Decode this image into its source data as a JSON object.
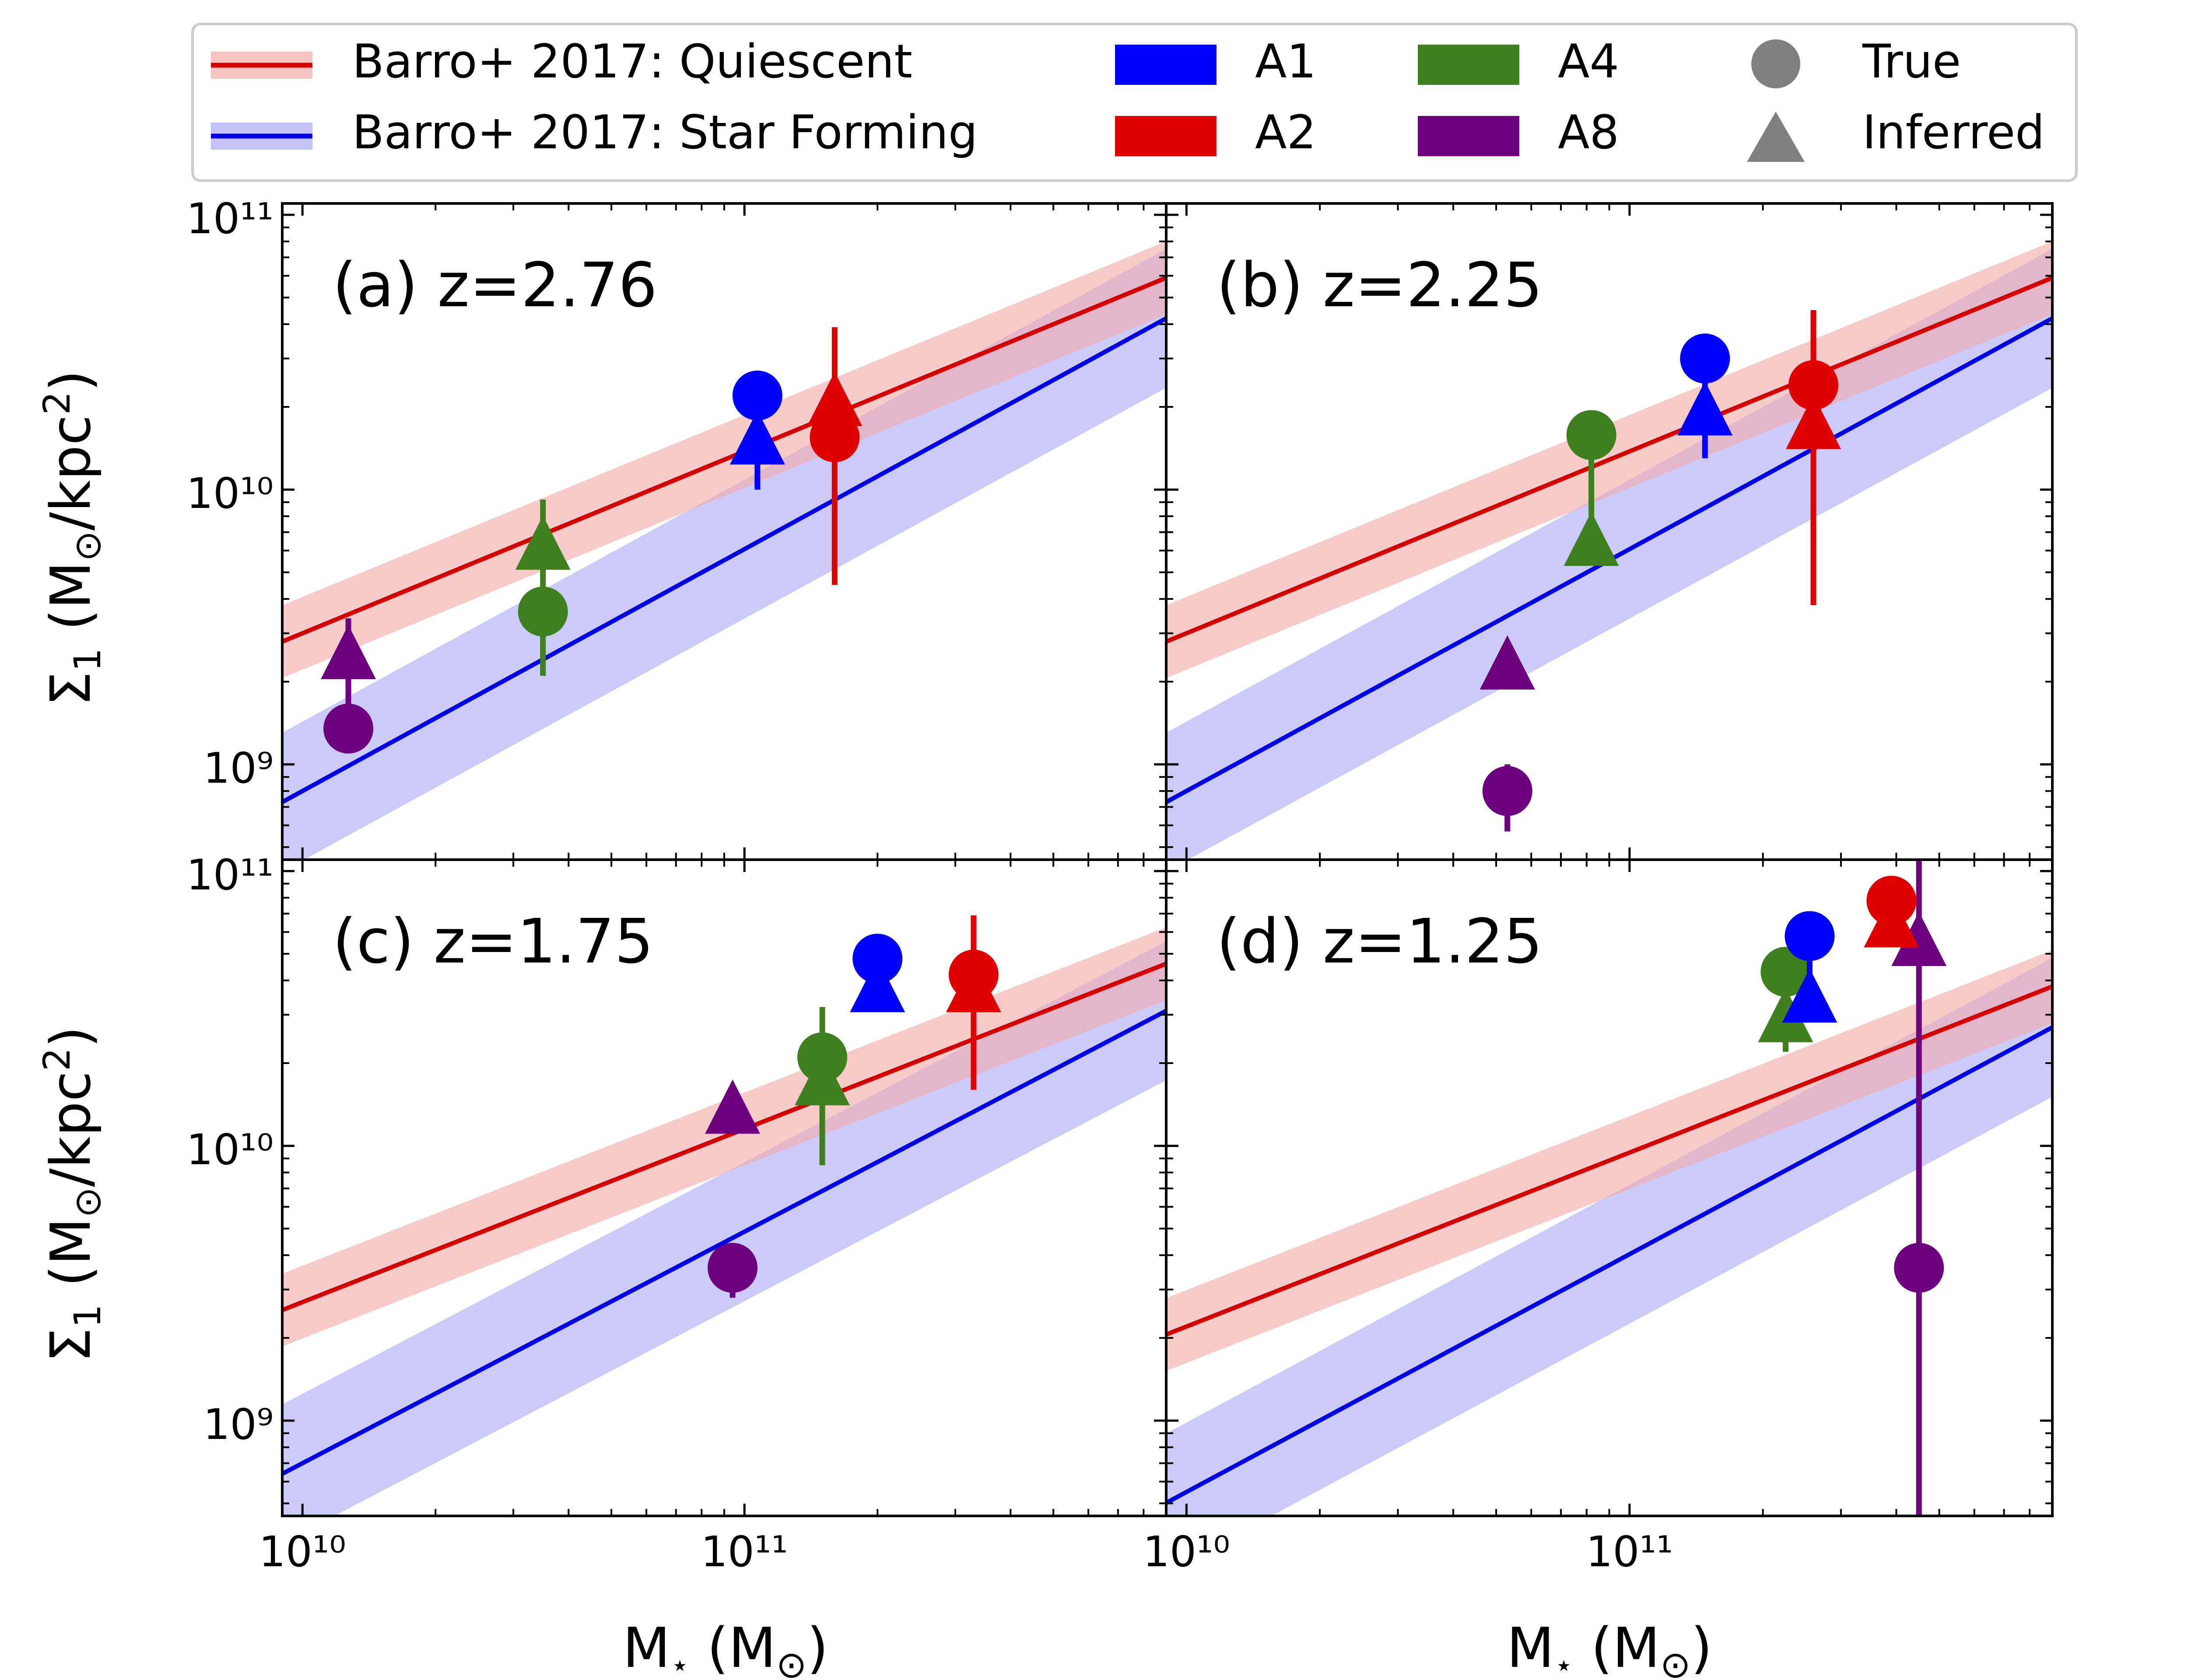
{
  "colors": {
    "quiescent_line": "#d40000",
    "quiescent_band": "#f4aaaa",
    "starforming_line": "#0000e6",
    "starforming_band": "#aaaaf6",
    "A1": "#0000ff",
    "A2": "#e00000",
    "A4": "#3f7f1f",
    "A8": "#6c007e",
    "marker_key": "#808080"
  },
  "legend": {
    "placement": "top-center",
    "relation_entries": [
      "Barro+ 2017: Quiescent",
      "Barro+ 2017: Star Forming"
    ],
    "sim_entries": [
      "A1",
      "A2",
      "A4",
      "A8"
    ],
    "marker_entries": [
      {
        "label": "True",
        "marker": "circle"
      },
      {
        "label": "Inferred",
        "marker": "triangle"
      }
    ]
  },
  "chart_data": {
    "type": "scatter",
    "layout": "2x2 panels, shared axes",
    "xlabel": "M⋆ (M⊙)",
    "ylabel": "Σ1 (M⊙/kpc²)",
    "xscale": "log",
    "yscale": "log",
    "xlim": [
      9000000000,
      900000000000
    ],
    "ylim": [
      450000000,
      110000000000
    ],
    "x_tick_labels": [
      "10¹⁰",
      "10¹¹"
    ],
    "y_tick_labels": [
      "10⁹",
      "10¹⁰",
      "10¹¹"
    ],
    "grid": false,
    "panels": [
      {
        "label": "(a) z=2.76",
        "relations": {
          "quiescent": {
            "at_1e10": 3000000000.0,
            "at_9e11": 59000000000.0,
            "band_dex": 0.13
          },
          "star_forming": {
            "at_1e10": 800000000.0,
            "at_9e11": 42000000000.0,
            "band_dex": 0.25
          }
        },
        "series": [
          {
            "name": "A1",
            "mass": 107000000000.0,
            "true": 22000000000.0,
            "inferred": 14500000000.0,
            "err": [
              10000000000.0,
              20000000000.0
            ]
          },
          {
            "name": "A2",
            "mass": 160000000000.0,
            "true": 15500000000.0,
            "inferred": 20000000000.0,
            "err": [
              4500000000.0,
              39000000000.0
            ]
          },
          {
            "name": "A4",
            "mass": 35000000000.0,
            "true": 3600000000.0,
            "inferred": 6000000000.0,
            "err": [
              2100000000.0,
              9200000000.0
            ]
          },
          {
            "name": "A8",
            "mass": 12700000000.0,
            "true": 1350000000.0,
            "inferred": 2400000000.0,
            "err": [
              1200000000.0,
              3400000000.0
            ]
          }
        ]
      },
      {
        "label": "(b) z=2.25",
        "relations": {
          "quiescent": {
            "at_1e10": 3000000000.0,
            "at_9e11": 59000000000.0,
            "band_dex": 0.13
          },
          "star_forming": {
            "at_1e10": 800000000.0,
            "at_9e11": 42000000000.0,
            "band_dex": 0.25
          }
        },
        "series": [
          {
            "name": "A1",
            "mass": 148000000000.0,
            "true": 30000000000.0,
            "inferred": 18500000000.0,
            "err": [
              13000000000.0,
              27000000000.0
            ]
          },
          {
            "name": "A2",
            "mass": 260000000000.0,
            "true": 24000000000.0,
            "inferred": 16500000000.0,
            "err": [
              3800000000.0,
              45000000000.0
            ]
          },
          {
            "name": "A4",
            "mass": 82000000000.0,
            "true": 15800000000.0,
            "inferred": 6200000000.0,
            "err": [
              5400000000.0,
              17000000000.0
            ]
          },
          {
            "name": "A8",
            "mass": 53000000000.0,
            "true": 800000000.0,
            "inferred": 2200000000.0,
            "err": [
              570000000.0,
              1000000000.0
            ]
          }
        ]
      },
      {
        "label": "(c) z=1.75",
        "relations": {
          "quiescent": {
            "at_1e10": 2700000000.0,
            "at_9e11": 46000000000.0,
            "band_dex": 0.13
          },
          "star_forming": {
            "at_1e10": 700000000.0,
            "at_9e11": 31000000000.0,
            "band_dex": 0.25
          }
        },
        "series": [
          {
            "name": "A1",
            "mass": 200000000000.0,
            "true": 48000000000.0,
            "inferred": 36000000000.0,
            "err": [
              34000000000.0,
              52000000000.0
            ]
          },
          {
            "name": "A2",
            "mass": 330000000000.0,
            "true": 42000000000.0,
            "inferred": 36000000000.0,
            "err": [
              16000000000.0,
              69000000000.0
            ]
          },
          {
            "name": "A4",
            "mass": 150000000000.0,
            "true": 21000000000.0,
            "inferred": 16500000000.0,
            "err": [
              8500000000.0,
              32000000000.0
            ]
          },
          {
            "name": "A8",
            "mass": 94000000000.0,
            "true": 3600000000.0,
            "inferred": 13000000000.0,
            "err": [
              2800000000.0,
              4000000000.0
            ]
          }
        ]
      },
      {
        "label": "(d) z=1.25",
        "relations": {
          "quiescent": {
            "at_1e10": 2200000000.0,
            "at_9e11": 38000000000.0,
            "band_dex": 0.13
          },
          "star_forming": {
            "at_1e10": 550000000.0,
            "at_9e11": 27000000000.0,
            "band_dex": 0.25
          }
        },
        "series": [
          {
            "name": "A1",
            "mass": 255000000000.0,
            "true": 58000000000.0,
            "inferred": 33000000000.0,
            "err": [
              30000000000.0,
              62000000000.0
            ]
          },
          {
            "name": "A2",
            "mass": 390000000000.0,
            "true": 78000000000.0,
            "inferred": 62000000000.0,
            "err": [
              58000000000.0,
              85000000000.0
            ]
          },
          {
            "name": "A4",
            "mass": 225000000000.0,
            "true": 43000000000.0,
            "inferred": 28000000000.0,
            "err": [
              22000000000.0,
              48000000000.0
            ]
          },
          {
            "name": "A8",
            "mass": 450000000000.0,
            "true": 3600000000.0,
            "inferred": 53000000000.0,
            "err": [
              450000000.0,
              110000000000.0
            ]
          }
        ]
      }
    ]
  }
}
